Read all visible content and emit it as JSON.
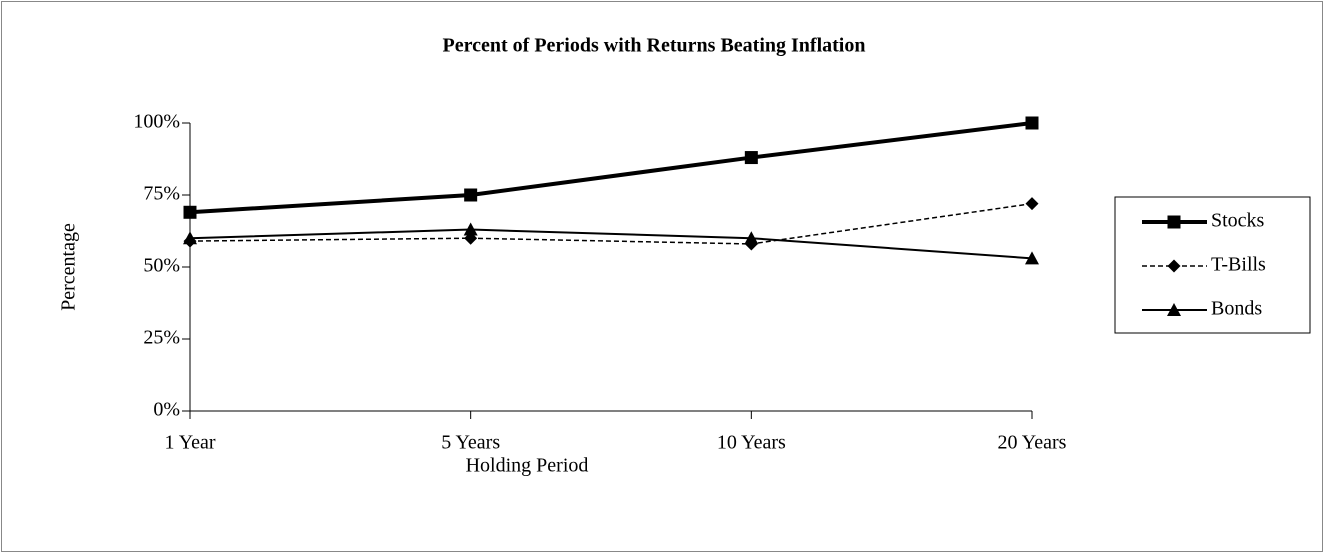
{
  "chart_data": {
    "type": "line",
    "title": "Percent of Periods with Returns Beating Inflation",
    "x_label": "Holding Period",
    "y_label": "Percentage",
    "categories": [
      "1 Year",
      "5 Years",
      "10 Years",
      "20 Years"
    ],
    "series": [
      {
        "name": "Stocks",
        "color": "#000000",
        "marker": "square",
        "dashed": false,
        "width": 4,
        "values": [
          69,
          75,
          88,
          100
        ]
      },
      {
        "name": "T-Bills",
        "color": "#000000",
        "marker": "diamond",
        "dashed": true,
        "width": 1.5,
        "values": [
          59,
          60,
          58,
          72
        ]
      },
      {
        "name": "Bonds",
        "color": "#000000",
        "marker": "triangle",
        "dashed": false,
        "width": 2,
        "values": [
          60,
          63,
          60,
          53
        ]
      }
    ],
    "ylim": [
      0,
      100
    ],
    "yticks": [
      {
        "value": 0,
        "label": "0%"
      },
      {
        "value": 25,
        "label": "25%"
      },
      {
        "value": 50,
        "label": "50%"
      },
      {
        "value": 75,
        "label": "75%"
      },
      {
        "value": 100,
        "label": "100%"
      }
    ],
    "grid": false,
    "legend": "right"
  }
}
